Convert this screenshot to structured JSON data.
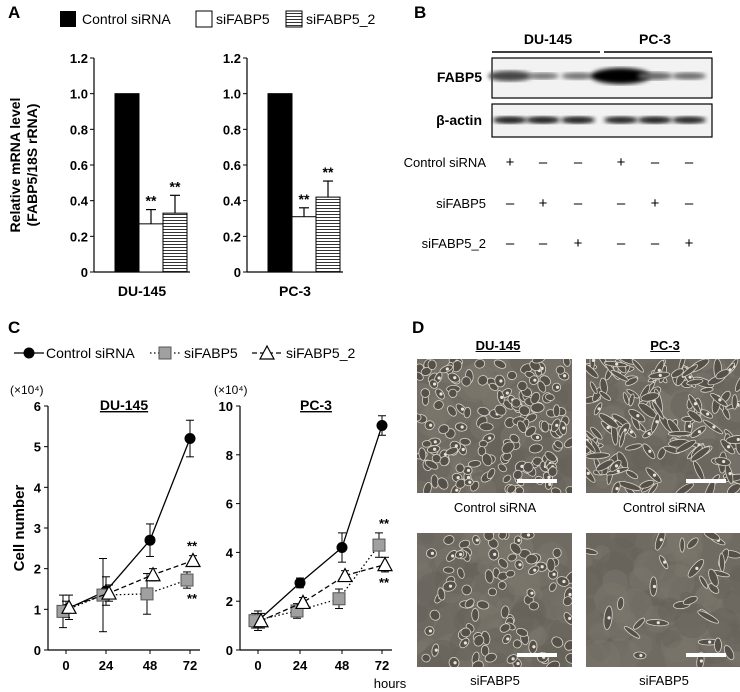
{
  "panel_labels": {
    "a": "A",
    "b": "B",
    "c": "C",
    "d": "D"
  },
  "legend_a": {
    "control": "Control siRNA",
    "sifabp5": "siFABP5",
    "sifabp5_2": "siFABP5_2"
  },
  "legend_c": {
    "control": "Control siRNA",
    "sifabp5": "siFABP5",
    "sifabp5_2": "siFABP5_2"
  },
  "significance": "**",
  "scale_factor": "(×10⁴)",
  "western_blot": {
    "groups": [
      "DU-145",
      "PC-3"
    ],
    "bands": [
      "FABP5",
      "β-actin"
    ],
    "rows": [
      {
        "label": "Control siRNA",
        "marks": [
          "+",
          "–",
          "–",
          "+",
          "–",
          "–"
        ]
      },
      {
        "label": "siFABP5",
        "marks": [
          "–",
          "+",
          "–",
          "–",
          "+",
          "–"
        ]
      },
      {
        "label": "siFABP5_2",
        "marks": [
          "–",
          "–",
          "+",
          "–",
          "–",
          "+"
        ]
      }
    ],
    "fabp5_intensity": [
      0.55,
      0.22,
      0.25,
      1.0,
      0.32,
      0.28
    ],
    "actin_intensity": [
      0.9,
      0.88,
      0.9,
      0.82,
      0.85,
      0.8
    ]
  },
  "micrographs": {
    "cols": [
      "DU-145",
      "PC-3"
    ],
    "labels": [
      "Control siRNA",
      "Control siRNA",
      "siFABP5",
      "siFABP5"
    ]
  },
  "chart_data": [
    {
      "type": "bar",
      "title": "DU-145",
      "ylabel": "Relative mRNA level\n(FABP5/18S rRNA)",
      "ylim": [
        0,
        1.2
      ],
      "yticks": [
        "0",
        "0.2",
        "0.4",
        "0.6",
        "0.8",
        "1.0",
        "1.2"
      ],
      "series": [
        {
          "name": "Control siRNA",
          "values": [
            1.0
          ],
          "err": [
            0
          ]
        },
        {
          "name": "siFABP5",
          "values": [
            0.27
          ],
          "err": [
            0.08
          ],
          "sig": "**"
        },
        {
          "name": "siFABP5_2",
          "values": [
            0.33
          ],
          "err": [
            0.1
          ],
          "sig": "**"
        }
      ]
    },
    {
      "type": "bar",
      "title": "PC-3",
      "ylim": [
        0,
        1.2
      ],
      "yticks": [
        "0",
        "0.2",
        "0.4",
        "0.6",
        "0.8",
        "1.0",
        "1.2"
      ],
      "series": [
        {
          "name": "Control siRNA",
          "values": [
            1.0
          ],
          "err": [
            0
          ]
        },
        {
          "name": "siFABP5",
          "values": [
            0.31
          ],
          "err": [
            0.05
          ],
          "sig": "**"
        },
        {
          "name": "siFABP5_2",
          "values": [
            0.42
          ],
          "err": [
            0.09
          ],
          "sig": "**"
        }
      ]
    },
    {
      "type": "line",
      "title": "DU-145",
      "ylabel": "Cell number",
      "x": [
        0,
        24,
        48,
        72
      ],
      "ylim": [
        0,
        6
      ],
      "yticks": [
        "0",
        "1",
        "2",
        "3",
        "4",
        "5",
        "6"
      ],
      "series": [
        {
          "name": "Control siRNA",
          "values": [
            1.0,
            1.45,
            2.7,
            5.2
          ],
          "err": [
            0.2,
            0.35,
            0.4,
            0.45
          ]
        },
        {
          "name": "siFABP5",
          "values": [
            0.95,
            1.35,
            1.38,
            1.72
          ],
          "err": [
            0.4,
            0.9,
            0.5,
            0.2
          ]
        },
        {
          "name": "siFABP5_2",
          "values": [
            1.05,
            1.4,
            1.85,
            2.2
          ],
          "err": [
            0.3,
            0.2,
            0.15,
            0.12
          ]
        }
      ],
      "sig": [
        {
          "series": "siFABP5_2",
          "x": 72,
          "label": "**",
          "pos": "above"
        },
        {
          "series": "siFABP5",
          "x": 72,
          "label": "**",
          "pos": "below"
        }
      ]
    },
    {
      "type": "line",
      "title": "PC-3",
      "xlabel": "hours",
      "x": [
        0,
        24,
        48,
        72
      ],
      "ylim": [
        0,
        10
      ],
      "yticks": [
        "0",
        "2",
        "4",
        "6",
        "8",
        "10"
      ],
      "series": [
        {
          "name": "Control siRNA",
          "values": [
            1.2,
            2.75,
            4.2,
            9.2
          ],
          "err": [
            0.4,
            0.2,
            0.6,
            0.4
          ]
        },
        {
          "name": "siFABP5",
          "values": [
            1.2,
            1.6,
            2.1,
            4.3
          ],
          "err": [
            0.3,
            0.3,
            0.4,
            0.5
          ]
        },
        {
          "name": "siFABP5_2",
          "values": [
            1.2,
            1.95,
            3.05,
            3.5
          ],
          "err": [
            0.3,
            0.2,
            0.2,
            0.3
          ]
        }
      ],
      "sig": [
        {
          "series": "siFABP5",
          "x": 72,
          "label": "**",
          "pos": "above"
        },
        {
          "series": "siFABP5_2",
          "x": 72,
          "label": "**",
          "pos": "below"
        }
      ]
    }
  ]
}
